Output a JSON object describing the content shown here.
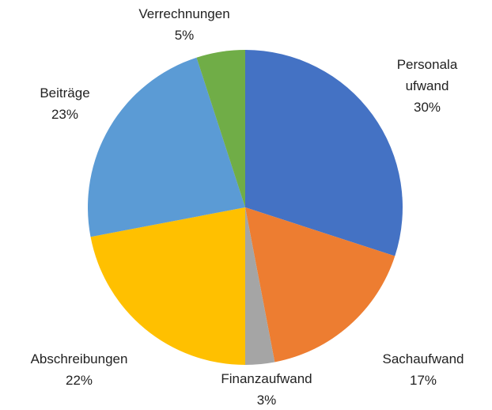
{
  "chart_data": {
    "type": "pie",
    "categories": [
      "Personalaufwand",
      "Sachaufwand",
      "Finanzaufwand",
      "Abschreibungen",
      "Beiträge",
      "Verrechnungen"
    ],
    "values": [
      30,
      17,
      3,
      22,
      23,
      5
    ],
    "value_labels": [
      "30%",
      "17%",
      "3%",
      "22%",
      "23%",
      "5%"
    ],
    "colors": [
      "#4472c4",
      "#ed7d31",
      "#a5a5a5",
      "#ffc000",
      "#5b9bd5",
      "#70ad47"
    ]
  }
}
